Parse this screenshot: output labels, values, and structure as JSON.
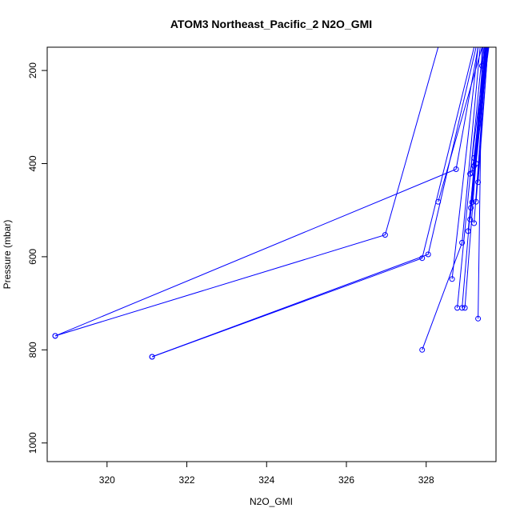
{
  "chart_data": {
    "type": "line",
    "title": "ATOM3 Northeast_Pacific_2 N2O_GMI",
    "xlabel": "N2O_GMI",
    "ylabel": "Pressure (mbar)",
    "xlim": [
      318.5,
      329.75
    ],
    "ylim": [
      1040,
      150
    ],
    "y_reversed": true,
    "x_ticks": [
      320,
      322,
      324,
      326,
      328
    ],
    "y_ticks": [
      200,
      400,
      600,
      800,
      1000
    ],
    "grid": false,
    "legend": "none",
    "series_color": "#0000ff",
    "point_style": "open-circle",
    "segments": [
      [
        [
          318.7,
          770
        ],
        [
          326.97,
          553
        ],
        [
          328.3,
          150
        ]
      ],
      [
        [
          318.7,
          770
        ],
        [
          328.75,
          412
        ],
        [
          329.3,
          150
        ]
      ],
      [
        [
          321.13,
          815
        ],
        [
          327.9,
          603
        ],
        [
          329.2,
          150
        ]
      ],
      [
        [
          321.13,
          815
        ],
        [
          328.05,
          595
        ],
        [
          329.25,
          150
        ]
      ],
      [
        [
          328.3,
          482
        ],
        [
          329.4,
          150
        ]
      ],
      [
        [
          327.9,
          800
        ],
        [
          328.9,
          570
        ],
        [
          329.35,
          150
        ]
      ],
      [
        [
          328.65,
          648
        ],
        [
          329.3,
          150
        ]
      ],
      [
        [
          329.3,
          733
        ],
        [
          329.4,
          150
        ]
      ],
      [
        [
          328.78,
          710
        ],
        [
          329.42,
          150
        ]
      ],
      [
        [
          328.9,
          710
        ],
        [
          329.45,
          150
        ]
      ],
      [
        [
          328.97,
          710
        ],
        [
          329.47,
          150
        ]
      ],
      [
        [
          329.05,
          545
        ],
        [
          329.5,
          150
        ]
      ],
      [
        [
          329.1,
          520
        ],
        [
          329.52,
          150
        ]
      ],
      [
        [
          329.12,
          495
        ],
        [
          329.48,
          150
        ]
      ],
      [
        [
          329.15,
          483
        ],
        [
          329.5,
          150
        ]
      ],
      [
        [
          329.2,
          528
        ],
        [
          329.52,
          150
        ]
      ],
      [
        [
          329.1,
          422
        ],
        [
          329.5,
          150
        ]
      ],
      [
        [
          329.15,
          420
        ],
        [
          329.53,
          150
        ]
      ],
      [
        [
          329.2,
          405
        ],
        [
          329.55,
          150
        ]
      ],
      [
        [
          329.25,
          400
        ],
        [
          329.55,
          150
        ]
      ],
      [
        [
          329.2,
          388
        ],
        [
          329.57,
          150
        ]
      ],
      [
        [
          329.25,
          482
        ],
        [
          329.55,
          150
        ]
      ],
      [
        [
          329.3,
          440
        ],
        [
          329.55,
          150
        ]
      ],
      [
        [
          329.4,
          190
        ],
        [
          329.45,
          150
        ]
      ]
    ]
  }
}
